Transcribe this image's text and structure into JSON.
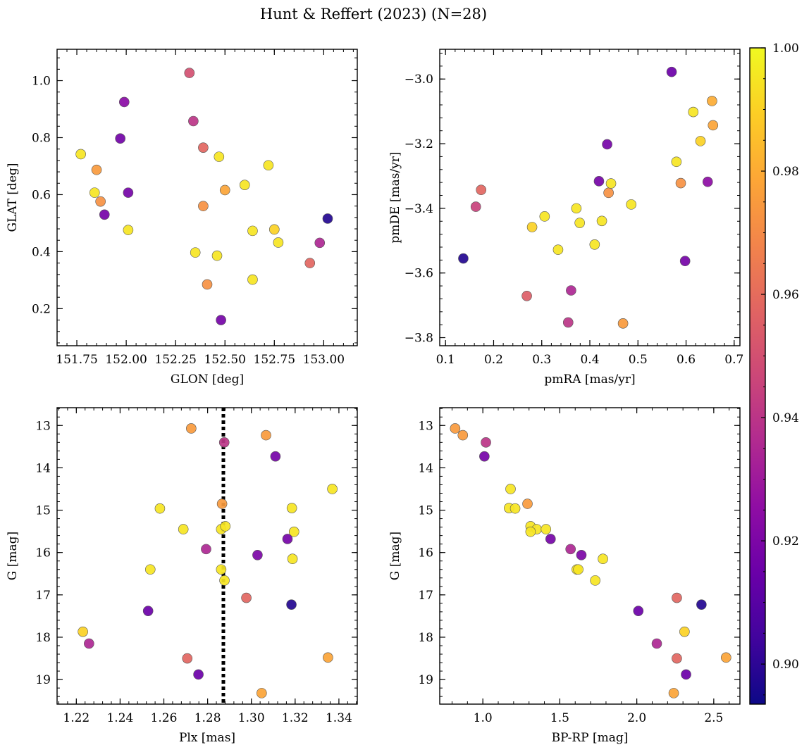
{
  "figure": {
    "title": "Hunt & Reffert (2023) (N=28)",
    "colorbar": {
      "colormap": "plasma",
      "range": [
        0.8935,
        1.0
      ],
      "ticks": [
        "0.90",
        "0.92",
        "0.94",
        "0.96",
        "0.98",
        "1.00"
      ],
      "tick_values": [
        0.9,
        0.92,
        0.94,
        0.96,
        0.98,
        1.0
      ]
    }
  },
  "chart_data": [
    {
      "id": "sky",
      "type": "scatter",
      "xlabel": "GLON [deg]",
      "ylabel": "GLAT [deg]",
      "xlim": [
        151.65,
        153.17
      ],
      "ylim": [
        0.07,
        1.11
      ],
      "y_inverted": false,
      "xticks": [
        151.75,
        152.0,
        152.25,
        152.5,
        152.75,
        153.0
      ],
      "xtick_labels": [
        "151.75",
        "152.00",
        "152.25",
        "152.50",
        "152.75",
        "153.00"
      ],
      "yticks": [
        0.2,
        0.4,
        0.6,
        0.8,
        1.0
      ],
      "ytick_labels": [
        "0.2",
        "0.4",
        "0.6",
        "0.8",
        "1.0"
      ],
      "points": [
        {
          "x": 151.77,
          "y": 0.742,
          "c": 0.995
        },
        {
          "x": 151.85,
          "y": 0.687,
          "c": 0.975
        },
        {
          "x": 151.84,
          "y": 0.607,
          "c": 0.995
        },
        {
          "x": 151.87,
          "y": 0.576,
          "c": 0.972
        },
        {
          "x": 151.89,
          "y": 0.53,
          "c": 0.918
        },
        {
          "x": 151.97,
          "y": 0.797,
          "c": 0.917
        },
        {
          "x": 151.99,
          "y": 0.925,
          "c": 0.924
        },
        {
          "x": 152.01,
          "y": 0.607,
          "c": 0.918
        },
        {
          "x": 152.01,
          "y": 0.476,
          "c": 0.995
        },
        {
          "x": 152.32,
          "y": 1.027,
          "c": 0.95
        },
        {
          "x": 152.34,
          "y": 0.858,
          "c": 0.94
        },
        {
          "x": 152.35,
          "y": 0.397,
          "c": 0.995
        },
        {
          "x": 152.39,
          "y": 0.765,
          "c": 0.958
        },
        {
          "x": 152.39,
          "y": 0.56,
          "c": 0.972
        },
        {
          "x": 152.41,
          "y": 0.285,
          "c": 0.972
        },
        {
          "x": 152.46,
          "y": 0.386,
          "c": 0.995
        },
        {
          "x": 152.47,
          "y": 0.733,
          "c": 0.995
        },
        {
          "x": 152.48,
          "y": 0.16,
          "c": 0.918
        },
        {
          "x": 152.5,
          "y": 0.616,
          "c": 0.978
        },
        {
          "x": 152.6,
          "y": 0.634,
          "c": 0.995
        },
        {
          "x": 152.64,
          "y": 0.473,
          "c": 0.995
        },
        {
          "x": 152.64,
          "y": 0.302,
          "c": 0.995
        },
        {
          "x": 152.72,
          "y": 0.703,
          "c": 0.995
        },
        {
          "x": 152.75,
          "y": 0.478,
          "c": 0.99
        },
        {
          "x": 152.77,
          "y": 0.432,
          "c": 0.995
        },
        {
          "x": 152.93,
          "y": 0.36,
          "c": 0.958
        },
        {
          "x": 152.98,
          "y": 0.431,
          "c": 0.935
        },
        {
          "x": 153.02,
          "y": 0.516,
          "c": 0.898
        }
      ]
    },
    {
      "id": "pm",
      "type": "scatter",
      "xlabel": "pmRA [mas/yr]",
      "ylabel": "pmDE [mas/yr]",
      "xlim": [
        0.088,
        0.712
      ],
      "ylim": [
        -3.825,
        -2.908
      ],
      "y_inverted": false,
      "xticks": [
        0.1,
        0.2,
        0.3,
        0.4,
        0.5,
        0.6,
        0.7
      ],
      "xtick_labels": [
        "0.1",
        "0.2",
        "0.3",
        "0.4",
        "0.5",
        "0.6",
        "0.7"
      ],
      "yticks": [
        -3.8,
        -3.6,
        -3.4,
        -3.2,
        -3.0
      ],
      "ytick_labels": [
        "−3.8",
        "−3.6",
        "−3.4",
        "−3.2",
        "−3.0"
      ],
      "points": [
        {
          "x": 0.137,
          "y": -3.555,
          "c": 0.898
        },
        {
          "x": 0.163,
          "y": -3.395,
          "c": 0.945
        },
        {
          "x": 0.174,
          "y": -3.343,
          "c": 0.958
        },
        {
          "x": 0.269,
          "y": -3.671,
          "c": 0.955
        },
        {
          "x": 0.28,
          "y": -3.458,
          "c": 0.99
        },
        {
          "x": 0.306,
          "y": -3.425,
          "c": 0.995
        },
        {
          "x": 0.334,
          "y": -3.528,
          "c": 0.995
        },
        {
          "x": 0.355,
          "y": -3.753,
          "c": 0.94
        },
        {
          "x": 0.361,
          "y": -3.654,
          "c": 0.935
        },
        {
          "x": 0.372,
          "y": -3.4,
          "c": 0.995
        },
        {
          "x": 0.379,
          "y": -3.445,
          "c": 0.995
        },
        {
          "x": 0.41,
          "y": -3.512,
          "c": 0.995
        },
        {
          "x": 0.419,
          "y": -3.316,
          "c": 0.918
        },
        {
          "x": 0.425,
          "y": -3.439,
          "c": 0.995
        },
        {
          "x": 0.436,
          "y": -3.202,
          "c": 0.918
        },
        {
          "x": 0.439,
          "y": -3.352,
          "c": 0.972
        },
        {
          "x": 0.444,
          "y": -3.323,
          "c": 0.995
        },
        {
          "x": 0.469,
          "y": -3.756,
          "c": 0.975
        },
        {
          "x": 0.486,
          "y": -3.388,
          "c": 0.995
        },
        {
          "x": 0.57,
          "y": -2.978,
          "c": 0.915
        },
        {
          "x": 0.58,
          "y": -3.256,
          "c": 0.995
        },
        {
          "x": 0.589,
          "y": -3.322,
          "c": 0.972
        },
        {
          "x": 0.598,
          "y": -3.563,
          "c": 0.918
        },
        {
          "x": 0.615,
          "y": -3.102,
          "c": 0.995
        },
        {
          "x": 0.63,
          "y": -3.192,
          "c": 0.99
        },
        {
          "x": 0.645,
          "y": -3.318,
          "c": 0.925
        },
        {
          "x": 0.654,
          "y": -3.068,
          "c": 0.98
        },
        {
          "x": 0.656,
          "y": -3.143,
          "c": 0.978
        }
      ]
    },
    {
      "id": "plx",
      "type": "scatter",
      "xlabel": "Plx [mas]",
      "ylabel": "G [mag]",
      "xlim": [
        1.2112,
        1.3484
      ],
      "ylim": [
        19.58,
        12.58
      ],
      "y_inverted": true,
      "xticks": [
        1.22,
        1.24,
        1.26,
        1.28,
        1.3,
        1.32,
        1.34
      ],
      "xtick_labels": [
        "1.22",
        "1.24",
        "1.26",
        "1.28",
        "1.30",
        "1.32",
        "1.34"
      ],
      "yticks": [
        13,
        14,
        15,
        16,
        17,
        18,
        19
      ],
      "ytick_labels": [
        "13",
        "14",
        "15",
        "16",
        "17",
        "18",
        "19"
      ],
      "vline": {
        "x": 1.2872,
        "style": "dotted",
        "color": "#000000"
      },
      "points": [
        {
          "x": 1.2725,
          "y": 13.07,
          "c": 0.975
        },
        {
          "x": 1.2876,
          "y": 13.4,
          "c": 0.94
        },
        {
          "x": 1.3067,
          "y": 13.23,
          "c": 0.975
        },
        {
          "x": 1.311,
          "y": 13.73,
          "c": 0.918
        },
        {
          "x": 1.337,
          "y": 14.5,
          "c": 0.995
        },
        {
          "x": 1.2582,
          "y": 14.96,
          "c": 0.995
        },
        {
          "x": 1.2866,
          "y": 14.85,
          "c": 0.975
        },
        {
          "x": 1.3185,
          "y": 14.95,
          "c": 0.995
        },
        {
          "x": 1.2689,
          "y": 15.45,
          "c": 0.995
        },
        {
          "x": 1.2862,
          "y": 15.45,
          "c": 0.995
        },
        {
          "x": 1.2881,
          "y": 15.38,
          "c": 0.995
        },
        {
          "x": 1.3195,
          "y": 15.51,
          "c": 0.995
        },
        {
          "x": 1.3165,
          "y": 15.68,
          "c": 0.918
        },
        {
          "x": 1.2793,
          "y": 15.92,
          "c": 0.935
        },
        {
          "x": 1.3028,
          "y": 16.06,
          "c": 0.92
        },
        {
          "x": 1.3188,
          "y": 16.15,
          "c": 0.995
        },
        {
          "x": 1.2538,
          "y": 16.4,
          "c": 0.995
        },
        {
          "x": 1.2862,
          "y": 16.4,
          "c": 0.995
        },
        {
          "x": 1.2877,
          "y": 16.66,
          "c": 0.995
        },
        {
          "x": 1.2977,
          "y": 17.07,
          "c": 0.958
        },
        {
          "x": 1.3183,
          "y": 17.23,
          "c": 0.898
        },
        {
          "x": 1.2528,
          "y": 17.38,
          "c": 0.915
        },
        {
          "x": 1.223,
          "y": 17.87,
          "c": 0.99
        },
        {
          "x": 1.2258,
          "y": 18.15,
          "c": 0.935
        },
        {
          "x": 1.2707,
          "y": 18.5,
          "c": 0.958
        },
        {
          "x": 1.335,
          "y": 18.48,
          "c": 0.978
        },
        {
          "x": 1.2758,
          "y": 18.88,
          "c": 0.915
        },
        {
          "x": 1.3047,
          "y": 19.32,
          "c": 0.978
        }
      ]
    },
    {
      "id": "cmd",
      "type": "scatter",
      "xlabel": "BP-RP [mag]",
      "ylabel": "G [mag]",
      "xlim": [
        0.72,
        2.67
      ],
      "ylim": [
        19.58,
        12.58
      ],
      "y_inverted": true,
      "xticks": [
        1.0,
        1.5,
        2.0,
        2.5
      ],
      "xtick_labels": [
        "1.0",
        "1.5",
        "2.0",
        "2.5"
      ],
      "yticks": [
        13,
        14,
        15,
        16,
        17,
        18,
        19
      ],
      "ytick_labels": [
        "13",
        "14",
        "15",
        "16",
        "17",
        "18",
        "19"
      ],
      "points": [
        {
          "x": 0.82,
          "y": 13.07,
          "c": 0.975
        },
        {
          "x": 0.87,
          "y": 13.23,
          "c": 0.975
        },
        {
          "x": 1.02,
          "y": 13.4,
          "c": 0.94
        },
        {
          "x": 1.01,
          "y": 13.73,
          "c": 0.918
        },
        {
          "x": 1.18,
          "y": 14.5,
          "c": 0.995
        },
        {
          "x": 1.17,
          "y": 14.95,
          "c": 0.995
        },
        {
          "x": 1.21,
          "y": 14.96,
          "c": 0.995
        },
        {
          "x": 1.29,
          "y": 14.85,
          "c": 0.975
        },
        {
          "x": 1.31,
          "y": 15.38,
          "c": 0.995
        },
        {
          "x": 1.35,
          "y": 15.45,
          "c": 0.995
        },
        {
          "x": 1.31,
          "y": 15.51,
          "c": 0.995
        },
        {
          "x": 1.41,
          "y": 15.45,
          "c": 0.995
        },
        {
          "x": 1.44,
          "y": 15.68,
          "c": 0.918
        },
        {
          "x": 1.57,
          "y": 15.92,
          "c": 0.935
        },
        {
          "x": 1.64,
          "y": 16.06,
          "c": 0.92
        },
        {
          "x": 1.78,
          "y": 16.15,
          "c": 0.995
        },
        {
          "x": 1.61,
          "y": 16.4,
          "c": 0.995
        },
        {
          "x": 1.62,
          "y": 16.4,
          "c": 0.995
        },
        {
          "x": 1.73,
          "y": 16.66,
          "c": 0.995
        },
        {
          "x": 2.26,
          "y": 17.07,
          "c": 0.958
        },
        {
          "x": 2.42,
          "y": 17.23,
          "c": 0.898
        },
        {
          "x": 2.01,
          "y": 17.38,
          "c": 0.915
        },
        {
          "x": 2.31,
          "y": 17.87,
          "c": 0.99
        },
        {
          "x": 2.13,
          "y": 18.15,
          "c": 0.935
        },
        {
          "x": 2.26,
          "y": 18.5,
          "c": 0.958
        },
        {
          "x": 2.58,
          "y": 18.48,
          "c": 0.978
        },
        {
          "x": 2.32,
          "y": 18.88,
          "c": 0.915
        },
        {
          "x": 2.24,
          "y": 19.32,
          "c": 0.978
        }
      ]
    }
  ]
}
